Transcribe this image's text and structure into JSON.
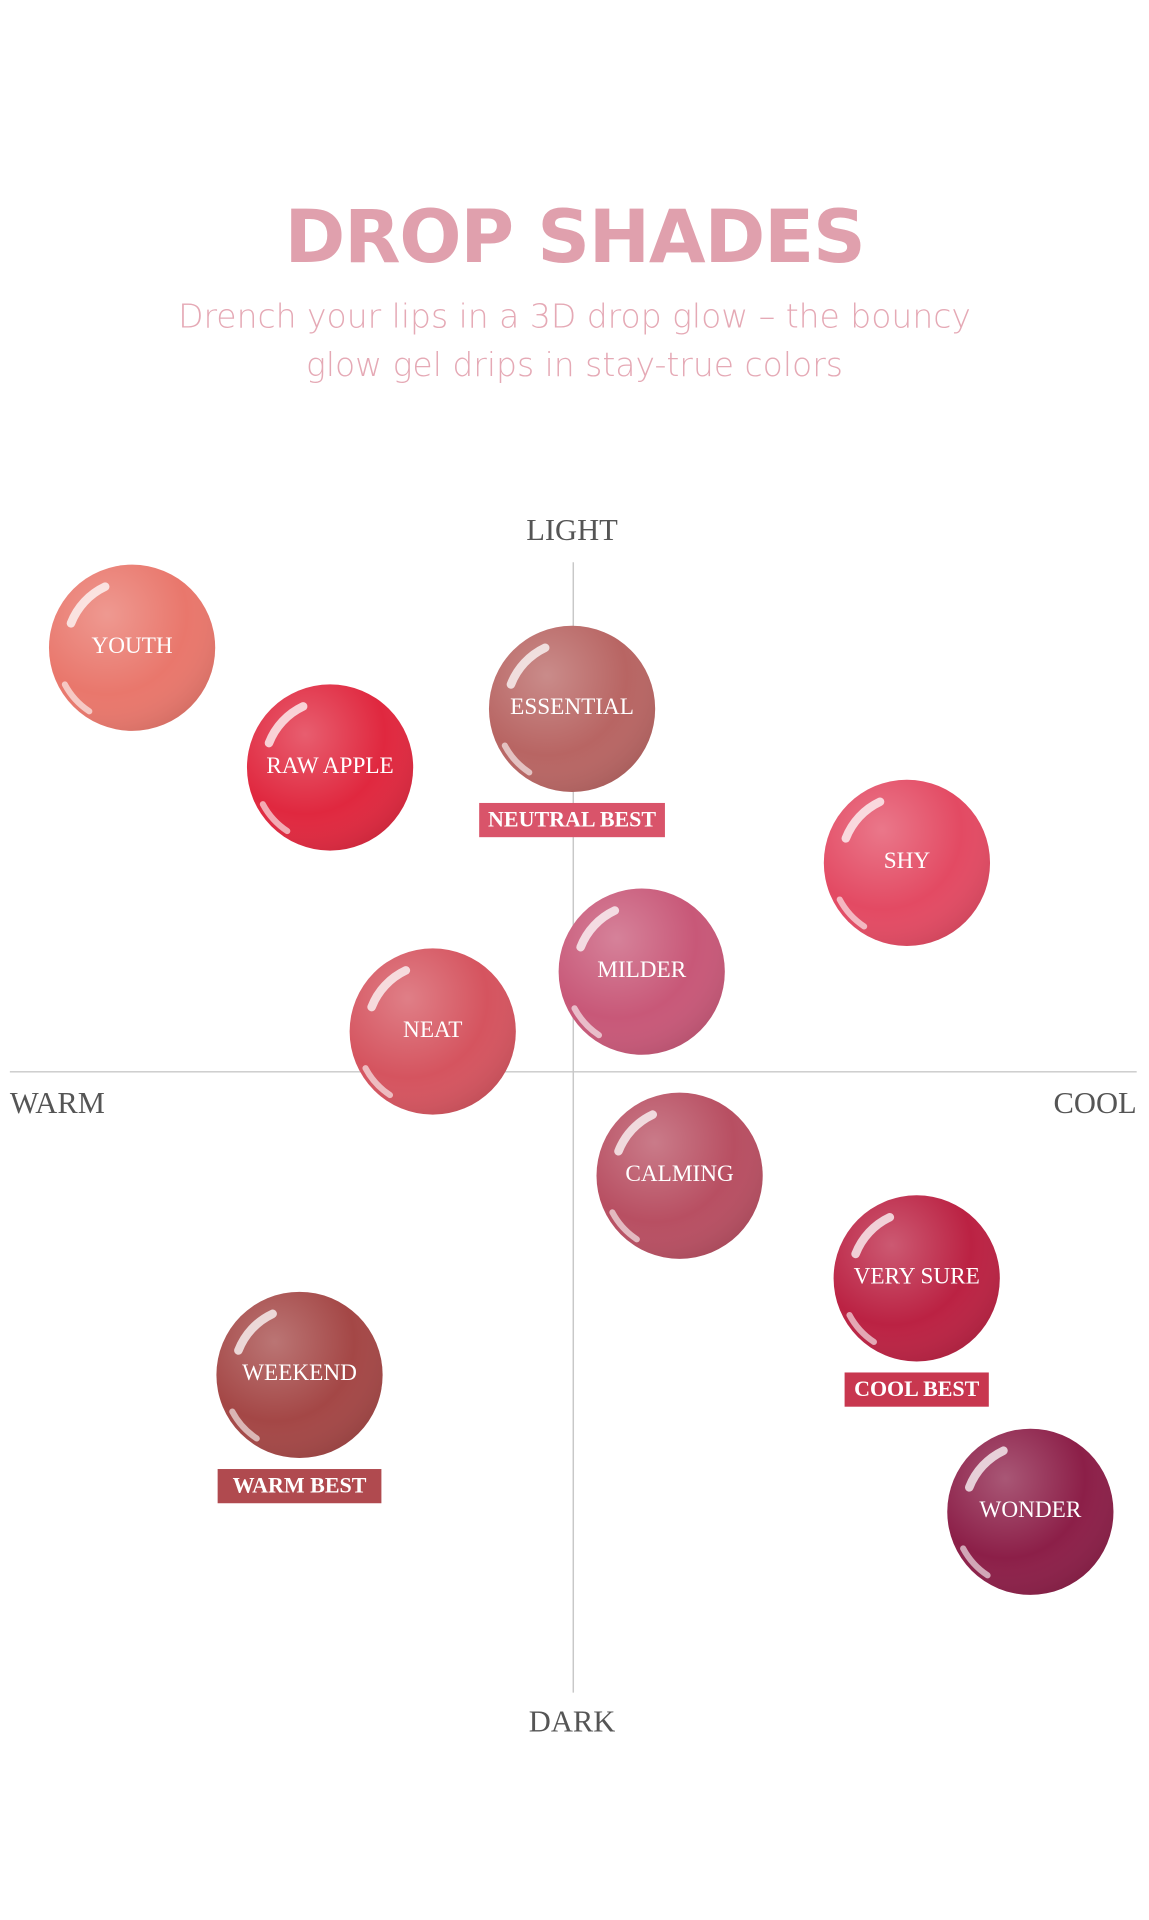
{
  "header": {
    "title": "DROP SHADES",
    "subtitle": [
      "Drench your lips in a 3D drop glow – the bouncy",
      "glow gel drips in stay-true colors"
    ]
  },
  "axes": {
    "top": "LIGHT",
    "bottom": "DARK",
    "left": "WARM",
    "right": "COOL"
  },
  "shades": [
    {
      "name": "YOUTH"
    },
    {
      "name": "RAW APPLE"
    },
    {
      "name": "ESSENTIAL",
      "badge": "NEUTRAL BEST"
    },
    {
      "name": "SHY"
    },
    {
      "name": "MILDER"
    },
    {
      "name": "NEAT"
    },
    {
      "name": "CALMING"
    },
    {
      "name": "VERY SURE",
      "badge": "COOL BEST"
    },
    {
      "name": "WEEKEND",
      "badge": "WARM BEST"
    },
    {
      "name": "WONDER"
    }
  ]
}
